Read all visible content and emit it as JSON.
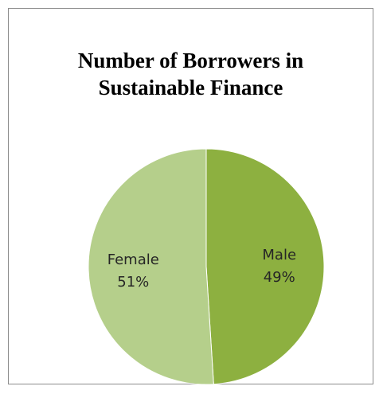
{
  "chart_data": {
    "type": "pie",
    "title_lines": [
      "Number of Borrowers in",
      "Sustainable Finance"
    ],
    "slices": [
      {
        "label": "Male",
        "value": 49,
        "value_label": "49%",
        "color": "#8db040"
      },
      {
        "label": "Female",
        "value": 51,
        "value_label": "51%",
        "color": "#b5cf8b"
      }
    ],
    "legend": "none"
  }
}
